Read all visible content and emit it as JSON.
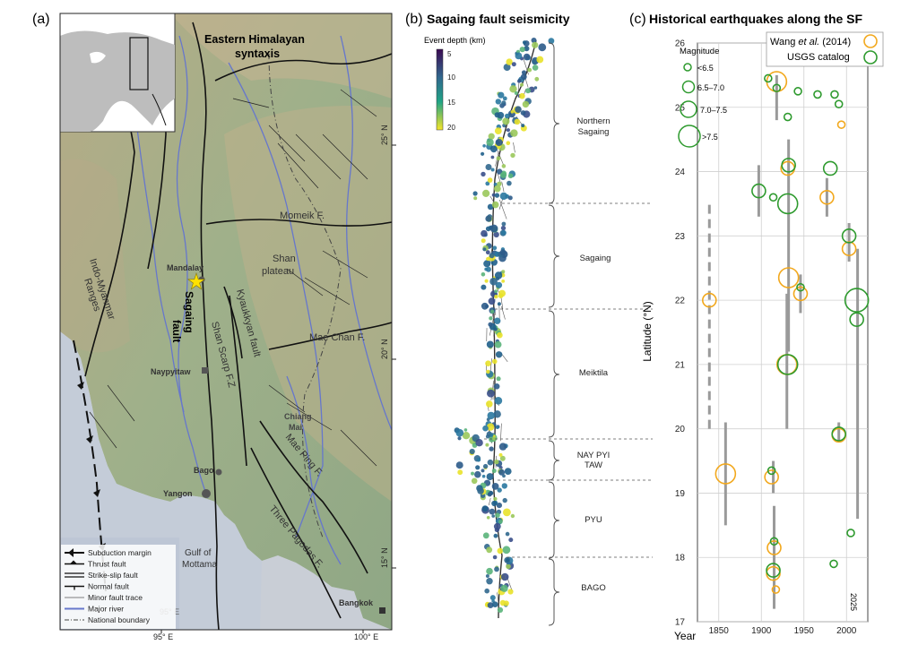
{
  "panel_a": {
    "label": "(a)",
    "title_line1": "Eastern Himalayan",
    "title_line2": "syntaxis",
    "places": {
      "mandalay": "Mandalay",
      "naypyitaw": "Naypyitaw",
      "bago": "Bago",
      "yangon": "Yangon",
      "chiang_mai_1": "Chiang",
      "chiang_mai_2": "Mai",
      "bangkok": "Bangkok",
      "gulf_1": "Gulf of",
      "gulf_2": "Mottama"
    },
    "features": {
      "sagaing_1": "Sagaing",
      "sagaing_2": "fault",
      "indo_myanmar": "Indo-Myanmar",
      "ranges": "Ranges",
      "shan_scarp": "Shan Scarp F.Z",
      "kyaukkyan": "Kyaukkyan fault",
      "shan_plateau_1": "Shan",
      "shan_plateau_2": "plateau",
      "momeik": "Momeik F.",
      "mae_chan": "Mae Chan F.",
      "mae_ping": "Mae Ping F.",
      "three_pagodas": "Three Pagodas F."
    },
    "lat_labels": [
      "25° N",
      "20° N",
      "15° N"
    ],
    "lon_labels": [
      "95° E",
      "100° E"
    ],
    "inner_lon_label": "95° E",
    "legend": [
      {
        "symbol": "subduction",
        "label": "Subduction margin"
      },
      {
        "symbol": "thrust",
        "label": "Thrust fault"
      },
      {
        "symbol": "strike-slip",
        "label": "Strike-slip fault"
      },
      {
        "symbol": "normal",
        "label": "Normal fault"
      },
      {
        "symbol": "minor",
        "label": "Minor fault trace"
      },
      {
        "symbol": "river",
        "label": "Major river"
      },
      {
        "symbol": "boundary",
        "label": "National boundary"
      }
    ],
    "colors": {
      "land": "#9fb08a",
      "highland": "#c7b592",
      "sea": "#c9ced6",
      "river": "#6677cc",
      "fault": "#111111",
      "star": "#ffe200"
    }
  },
  "panel_b": {
    "label": "(b)",
    "title": "Sagaing fault seismicity",
    "colorbar_title": "Event depth (km)",
    "colorbar_ticks": [
      "5",
      "10",
      "15",
      "20"
    ],
    "segments": [
      {
        "name_1": "Northern",
        "name_2": "Sagaing"
      },
      {
        "name_1": "Sagaing",
        "name_2": ""
      },
      {
        "name_1": "Meiktila",
        "name_2": ""
      },
      {
        "name_1": "NAY PYI",
        "name_2": "TAW"
      },
      {
        "name_1": "PYU",
        "name_2": ""
      },
      {
        "name_1": "BAGO",
        "name_2": ""
      }
    ],
    "colors": {
      "shallow": "#3b0a52",
      "mid": "#2a78a0",
      "deep": "#f5e52a"
    }
  },
  "panel_c": {
    "label": "(c)",
    "title": "Historical earthquakes along the SF",
    "ylabel": "Latitude (°N)",
    "xlabel": "Year",
    "year_2025": "2025",
    "magnitude_title": "Magnitude",
    "magnitude_classes": [
      "<6.5",
      "6.5–7.0",
      "7.0–7.5",
      ">7.5"
    ],
    "legend_wang_pre": "Wang ",
    "legend_wang_em": "et al.",
    "legend_wang_post": " (2014)",
    "legend_usgs": "USGS catalog",
    "colors": {
      "wang": "#f2a81d",
      "usgs": "#2e9a2e",
      "bar": "#9a9a9a"
    }
  },
  "chart_data": {
    "type": "scatter",
    "title": "Historical earthquakes along the SF",
    "xlabel": "Year",
    "ylabel": "Latitude (°N)",
    "xlim": [
      1825,
      2025
    ],
    "ylim": [
      17,
      26
    ],
    "xticks": [
      1850,
      1900,
      1950,
      2000
    ],
    "yticks": [
      17,
      18,
      19,
      20,
      21,
      22,
      23,
      24,
      25,
      26
    ],
    "grid": true,
    "legend_position": "top-right",
    "series": [
      {
        "name": "Wang et al. (2014)",
        "color": "#f2a81d",
        "points": [
          {
            "x": 1839,
            "y": 22.0,
            "mag": "6.5–7.0"
          },
          {
            "x": 1858,
            "y": 19.3,
            "mag": "7.0–7.5"
          },
          {
            "x": 1918,
            "y": 25.4,
            "mag": "7.0–7.5"
          },
          {
            "x": 1912,
            "y": 19.25,
            "mag": "6.5–7.0"
          },
          {
            "x": 1915,
            "y": 18.15,
            "mag": "6.5–7.0"
          },
          {
            "x": 1914,
            "y": 17.75,
            "mag": "6.5–7.0"
          },
          {
            "x": 1917,
            "y": 17.5,
            "mag": "<6.5"
          },
          {
            "x": 1930,
            "y": 21.0,
            "mag": "7.0–7.5"
          },
          {
            "x": 1931,
            "y": 24.05,
            "mag": "6.5–7.0"
          },
          {
            "x": 1946,
            "y": 22.1,
            "mag": "6.5–7.0"
          },
          {
            "x": 1932,
            "y": 22.35,
            "mag": "7.0–7.5"
          },
          {
            "x": 1977,
            "y": 23.6,
            "mag": "6.5–7.0"
          },
          {
            "x": 1991,
            "y": 19.9,
            "mag": "6.5–7.0"
          },
          {
            "x": 1994,
            "y": 24.73,
            "mag": "<6.5"
          },
          {
            "x": 2003,
            "y": 22.8,
            "mag": "6.5–7.0"
          }
        ]
      },
      {
        "name": "USGS catalog",
        "color": "#2e9a2e",
        "points": [
          {
            "x": 1908,
            "y": 25.45,
            "mag": "<6.5"
          },
          {
            "x": 1918,
            "y": 25.3,
            "mag": "<6.5"
          },
          {
            "x": 1931,
            "y": 24.85,
            "mag": "<6.5"
          },
          {
            "x": 1943,
            "y": 25.25,
            "mag": "<6.5"
          },
          {
            "x": 1966,
            "y": 25.2,
            "mag": "<6.5"
          },
          {
            "x": 1986,
            "y": 25.2,
            "mag": "<6.5"
          },
          {
            "x": 1991,
            "y": 25.05,
            "mag": "<6.5"
          },
          {
            "x": 1897,
            "y": 23.7,
            "mag": "6.5–7.0"
          },
          {
            "x": 1914,
            "y": 23.6,
            "mag": "<6.5"
          },
          {
            "x": 1932,
            "y": 24.1,
            "mag": "6.5–7.0"
          },
          {
            "x": 1931,
            "y": 23.5,
            "mag": "7.0–7.5"
          },
          {
            "x": 1946,
            "y": 22.2,
            "mag": "<6.5"
          },
          {
            "x": 1981,
            "y": 24.05,
            "mag": "6.5–7.0"
          },
          {
            "x": 1931,
            "y": 21.0,
            "mag": "7.0–7.5"
          },
          {
            "x": 1991,
            "y": 19.92,
            "mag": "6.5–7.0"
          },
          {
            "x": 2003,
            "y": 23.0,
            "mag": "6.5–7.0"
          },
          {
            "x": 2012,
            "y": 22.0,
            "mag": ">7.5"
          },
          {
            "x": 2012,
            "y": 21.7,
            "mag": "6.5–7.0"
          },
          {
            "x": 1912,
            "y": 19.35,
            "mag": "<6.5"
          },
          {
            "x": 1915,
            "y": 18.25,
            "mag": "<6.5"
          },
          {
            "x": 1914,
            "y": 17.8,
            "mag": "6.5–7.0"
          },
          {
            "x": 1985,
            "y": 17.9,
            "mag": "<6.5"
          },
          {
            "x": 2005,
            "y": 18.38,
            "mag": "<6.5"
          }
        ]
      }
    ],
    "rupture_extents": [
      {
        "x": 1839,
        "y0": 20.0,
        "y1": 23.5,
        "style": "dashed"
      },
      {
        "x": 1858,
        "y0": 18.5,
        "y1": 20.1,
        "style": "solid"
      },
      {
        "x": 1897,
        "y0": 23.3,
        "y1": 24.1,
        "style": "solid"
      },
      {
        "x": 1918,
        "y0": 24.8,
        "y1": 25.5,
        "style": "solid"
      },
      {
        "x": 1914,
        "y0": 19.0,
        "y1": 19.5,
        "style": "solid"
      },
      {
        "x": 1915,
        "y0": 17.2,
        "y1": 18.8,
        "style": "solid"
      },
      {
        "x": 1930,
        "y0": 20.0,
        "y1": 22.1,
        "style": "solid"
      },
      {
        "x": 1932,
        "y0": 21.2,
        "y1": 24.5,
        "style": "solid"
      },
      {
        "x": 1946,
        "y0": 21.8,
        "y1": 22.4,
        "style": "solid"
      },
      {
        "x": 1977,
        "y0": 23.3,
        "y1": 23.9,
        "style": "solid"
      },
      {
        "x": 1991,
        "y0": 19.8,
        "y1": 20.1,
        "style": "solid"
      },
      {
        "x": 2003,
        "y0": 22.6,
        "y1": 23.2,
        "style": "solid"
      },
      {
        "x": 2013,
        "y0": 18.6,
        "y1": 22.8,
        "style": "solid"
      }
    ]
  }
}
